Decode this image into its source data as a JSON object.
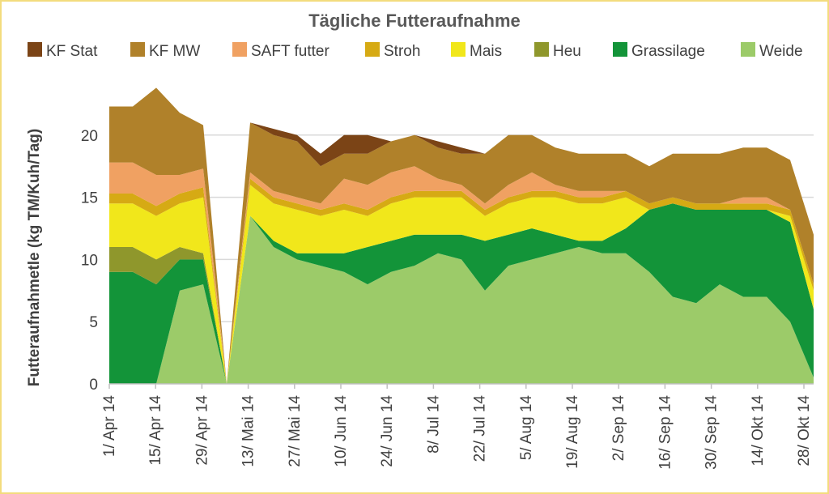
{
  "chart_data": {
    "type": "area",
    "stacked": true,
    "title": "Tägliche Futteraufnahme",
    "ylabel": "Futteraufnahmetle (kg TM/Kuh/Tag)",
    "xlabel": "",
    "ylim": [
      0,
      25
    ],
    "yticks": [
      0,
      5,
      10,
      15,
      20
    ],
    "grid": "horizontal",
    "legend_position": "top",
    "x_tick_labels": [
      "1/ Apr 14",
      "15/ Apr 14",
      "29/ Apr 14",
      "13/ Mai 14",
      "27/ Mai 14",
      "10/ Jun 14",
      "24/ Jun 14",
      "8/ Jul 14",
      "22/ Jul 14",
      "5/ Aug 14",
      "19/ Aug 14",
      "2/ Sep 14",
      "16/ Sep 14",
      "30/ Sep 14",
      "14/ Okt 14",
      "28/ Okt 14"
    ],
    "x": [
      "1/ Apr 14",
      "8/ Apr 14",
      "15/ Apr 14",
      "22/ Apr 14",
      "29/ Apr 14",
      "6/ Mai 14",
      "13/ Mai 14",
      "20/ Mai 14",
      "27/ Mai 14",
      "3/ Jun 14",
      "10/ Jun 14",
      "17/ Jun 14",
      "24/ Jun 14",
      "1/ Jul 14",
      "8/ Jul 14",
      "15/ Jul 14",
      "22/ Jul 14",
      "29/ Jul 14",
      "5/ Aug 14",
      "12/ Aug 14",
      "19/ Aug 14",
      "26/ Aug 14",
      "2/ Sep 14",
      "9/ Sep 14",
      "16/ Sep 14",
      "23/ Sep 14",
      "30/ Sep 14",
      "7/ Okt 14",
      "14/ Okt 14",
      "21/ Okt 14",
      "28/ Okt 14"
    ],
    "series": [
      {
        "name": "Weide",
        "color": "#9ccb69",
        "values": [
          0,
          0,
          0,
          7.5,
          8,
          0,
          13.5,
          11,
          10,
          9.5,
          9,
          8,
          9,
          9.5,
          10.5,
          10,
          7.5,
          9.5,
          10,
          10.5,
          11,
          10.5,
          10.5,
          9,
          7,
          6.5,
          8,
          7,
          7,
          5,
          0.5
        ]
      },
      {
        "name": "Grassilage",
        "color": "#139439",
        "values": [
          9,
          9,
          8,
          2.5,
          2,
          0,
          0,
          0.5,
          0.5,
          1,
          1.5,
          3,
          2.5,
          2.5,
          1.5,
          2,
          4,
          2.5,
          2.5,
          1.5,
          0.5,
          1,
          2,
          5,
          7.5,
          7.5,
          6,
          7,
          7,
          8,
          5.5
        ]
      },
      {
        "name": "Heu",
        "color": "#8f972c",
        "values": [
          2,
          2,
          2,
          1,
          0.5,
          0,
          0,
          0,
          0,
          0,
          0,
          0,
          0,
          0,
          0,
          0,
          0,
          0,
          0,
          0,
          0,
          0,
          0,
          0,
          0,
          0,
          0,
          0,
          0,
          0,
          0
        ]
      },
      {
        "name": "Mais",
        "color": "#f1e71b",
        "values": [
          3.5,
          3.5,
          3.5,
          3.5,
          4.5,
          0,
          2.5,
          3,
          3.5,
          3,
          3.5,
          2.5,
          3,
          3,
          3,
          3,
          2,
          2.5,
          2.5,
          3,
          3,
          3,
          2.5,
          0,
          0,
          0,
          0,
          0,
          0,
          0.5,
          1.5
        ]
      },
      {
        "name": "Stroh",
        "color": "#d6aa14",
        "values": [
          0.8,
          0.8,
          0.8,
          0.8,
          0.8,
          0,
          0.5,
          0.5,
          0.5,
          0.5,
          0.5,
          0.5,
          0.5,
          0.5,
          0.5,
          0.5,
          0.5,
          0.5,
          0.5,
          0.5,
          0.5,
          0.5,
          0.5,
          0.5,
          0.5,
          0.5,
          0.5,
          0.5,
          0.5,
          0.5,
          0.5
        ]
      },
      {
        "name": "SAFT futter",
        "color": "#f0a162",
        "values": [
          2.5,
          2.5,
          2.5,
          1.5,
          1.5,
          0,
          0.5,
          0.5,
          0.5,
          0.5,
          2,
          2,
          2,
          2,
          1,
          0.5,
          0.5,
          1,
          1.5,
          0.5,
          0.5,
          0.5,
          0,
          0,
          0,
          0,
          0,
          0.5,
          0.5,
          0,
          0
        ]
      },
      {
        "name": "KF MW",
        "color": "#b0812a",
        "values": [
          4.5,
          4.5,
          7,
          5,
          3.5,
          0,
          4,
          4.5,
          4.5,
          3,
          2,
          2.5,
          2.5,
          2.5,
          2.5,
          2.5,
          4,
          4,
          3,
          3,
          3,
          3,
          3,
          3,
          3.5,
          4,
          4,
          4,
          4,
          4,
          4
        ]
      },
      {
        "name": "KF Stat",
        "color": "#7b4416",
        "values": [
          0,
          0,
          0,
          0,
          0,
          0,
          0,
          0.5,
          0.5,
          1,
          1.5,
          1.5,
          0,
          0,
          0.5,
          0.5,
          0,
          0,
          0,
          0,
          0,
          0,
          0,
          0,
          0,
          0,
          0,
          0,
          0,
          0,
          0
        ]
      }
    ],
    "legend_order": [
      "KF Stat",
      "KF MW",
      "SAFT futter",
      "Stroh",
      "Mais",
      "Heu",
      "Grassilage",
      "Weide"
    ]
  }
}
